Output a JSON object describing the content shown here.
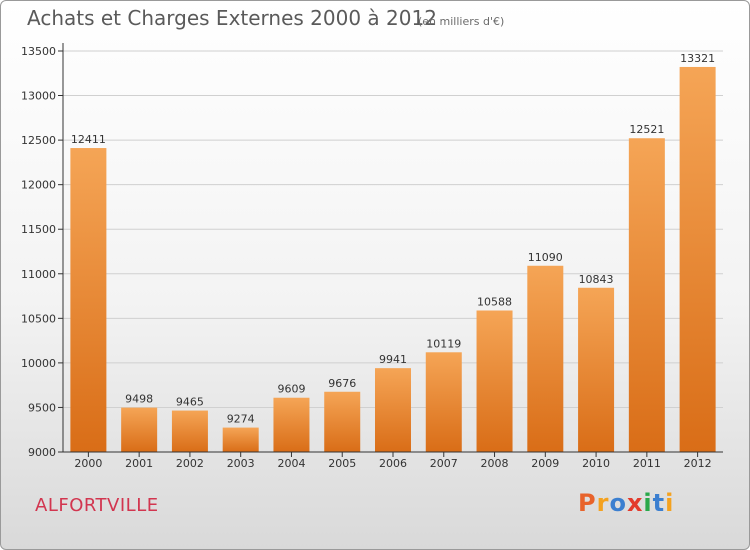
{
  "title": "Achats et Charges Externes 2000 à 2012",
  "subtitle": "(en milliers d'€)",
  "location": "ALFORTVILLE",
  "logo": {
    "text": "Proxiti",
    "colors": [
      "#e8632b",
      "#f4a21f",
      "#3b7fd0",
      "#e33a2c",
      "#2aa84a",
      "#3b7fd0",
      "#f4a21f"
    ]
  },
  "colors": {
    "bar_top": "#f5a556",
    "bar_bottom": "#d96d17",
    "axis": "#333333",
    "grid": "#d0d0d0"
  },
  "chart_data": {
    "type": "bar",
    "title": "Achats et Charges Externes 2000 à 2012",
    "xlabel": "",
    "ylabel": "",
    "categories": [
      "2000",
      "2001",
      "2002",
      "2003",
      "2004",
      "2005",
      "2006",
      "2007",
      "2008",
      "2009",
      "2010",
      "2011",
      "2012"
    ],
    "values": [
      12411,
      9498,
      9465,
      9274,
      9609,
      9676,
      9941,
      10119,
      10588,
      11090,
      10843,
      12521,
      13321
    ],
    "ylim": [
      9000,
      13500
    ],
    "yticks": [
      9000,
      9500,
      10000,
      10500,
      11000,
      11500,
      12000,
      12500,
      13000,
      13500
    ],
    "grid": true,
    "data_labels": true
  }
}
